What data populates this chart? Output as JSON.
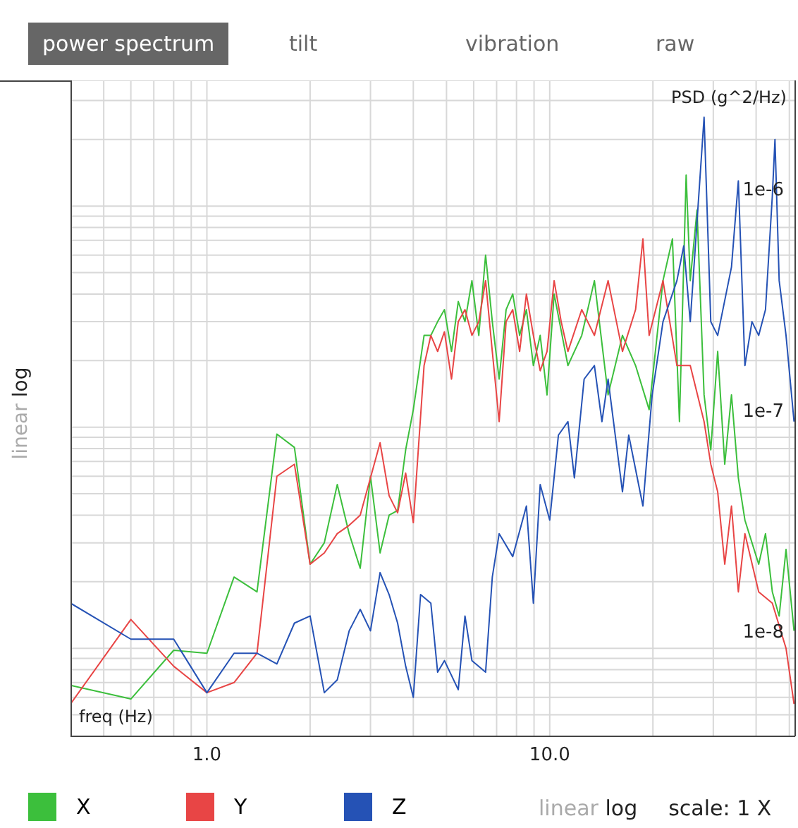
{
  "chart_data": {
    "type": "line",
    "xlabel": "freq (Hz)",
    "ylabel": "PSD (g^2/Hz)",
    "annotations": [
      "power spectrum",
      "tilt",
      "vibration",
      "raw",
      "linear",
      "log",
      "linear",
      "log",
      "scale: 1 X"
    ],
    "log": "xy",
    "grid": true,
    "legend": "bottom",
    "marker": "none",
    "line_style": "solid",
    "xlim": [
      0.4,
      52
    ],
    "ylim": [
      4e-09,
      3.7e-06
    ],
    "xticks": [
      {
        "value": 0.4,
        "label": null
      },
      {
        "value": 0.5,
        "label": null
      },
      {
        "value": 0.6,
        "label": null
      },
      {
        "value": 0.7,
        "label": null
      },
      {
        "value": 0.8,
        "label": null
      },
      {
        "value": 0.9,
        "label": null
      },
      {
        "value": 1,
        "label": "1.0"
      },
      {
        "value": 2,
        "label": null
      },
      {
        "value": 3,
        "label": null
      },
      {
        "value": 4,
        "label": null
      },
      {
        "value": 5,
        "label": null
      },
      {
        "value": 6,
        "label": null
      },
      {
        "value": 7,
        "label": null
      },
      {
        "value": 8,
        "label": null
      },
      {
        "value": 9,
        "label": null
      },
      {
        "value": 10,
        "label": "10.0"
      },
      {
        "value": 20,
        "label": null
      },
      {
        "value": 30,
        "label": null
      },
      {
        "value": 40,
        "label": null
      },
      {
        "value": 50,
        "label": null
      }
    ],
    "yticks": [
      {
        "value": 5e-09,
        "label": null
      },
      {
        "value": 6e-09,
        "label": null
      },
      {
        "value": 7e-09,
        "label": null
      },
      {
        "value": 8e-09,
        "label": null
      },
      {
        "value": 9e-09,
        "label": null
      },
      {
        "value": 1e-08,
        "label": "1e-8"
      },
      {
        "value": 2e-08,
        "label": null
      },
      {
        "value": 3e-08,
        "label": null
      },
      {
        "value": 4e-08,
        "label": null
      },
      {
        "value": 5e-08,
        "label": null
      },
      {
        "value": 6e-08,
        "label": null
      },
      {
        "value": 7e-08,
        "label": null
      },
      {
        "value": 8e-08,
        "label": null
      },
      {
        "value": 9e-08,
        "label": null
      },
      {
        "value": 1e-07,
        "label": "1e-7"
      },
      {
        "value": 2e-07,
        "label": null
      },
      {
        "value": 3e-07,
        "label": null
      },
      {
        "value": 4e-07,
        "label": null
      },
      {
        "value": 5e-07,
        "label": null
      },
      {
        "value": 6e-07,
        "label": null
      },
      {
        "value": 7e-07,
        "label": null
      },
      {
        "value": 8e-07,
        "label": null
      },
      {
        "value": 9e-07,
        "label": null
      },
      {
        "value": 1e-06,
        "label": "1e-6"
      },
      {
        "value": 2e-06,
        "label": null
      },
      {
        "value": 3e-06,
        "label": null
      }
    ],
    "series": [
      {
        "name": "X",
        "color": "#3cbf3c",
        "x": [
          0.4,
          0.6,
          0.8,
          1.0,
          1.2,
          1.4,
          1.6,
          1.8,
          2.0,
          2.2,
          2.4,
          2.6,
          2.8,
          3.0,
          3.2,
          3.4,
          3.6,
          3.8,
          4.0,
          4.3,
          4.5,
          4.71,
          4.93,
          5.17,
          5.41,
          5.66,
          5.93,
          6.21,
          6.5,
          6.8,
          7.12,
          7.46,
          7.8,
          8.17,
          8.55,
          8.96,
          9.38,
          9.82,
          10.3,
          11.3,
          12.4,
          13.5,
          14.8,
          16.3,
          17.8,
          19.5,
          21.4,
          22.8,
          23.9,
          25.0,
          25.7,
          26.9,
          28.2,
          29.5,
          30.9,
          32.4,
          33.9,
          35.5,
          37.1,
          40.7,
          42.6,
          44.6,
          46.7,
          48.9,
          51.6
        ],
        "values": [
          6.8e-09,
          5.9e-09,
          9.8e-09,
          9.5e-09,
          2.1e-08,
          1.8e-08,
          9.3e-08,
          8.1e-08,
          2.4e-08,
          3e-08,
          5.5e-08,
          3.3e-08,
          2.3e-08,
          6e-08,
          2.7e-08,
          4e-08,
          4.2e-08,
          7.9e-08,
          1.2e-07,
          2.6e-07,
          2.6e-07,
          3e-07,
          3.4e-07,
          2.2e-07,
          3.7e-07,
          3e-07,
          4.6e-07,
          2.6e-07,
          6e-07,
          3e-07,
          1.65e-07,
          3.4e-07,
          4e-07,
          2.6e-07,
          3.4e-07,
          1.9e-07,
          2.6e-07,
          1.4e-07,
          4e-07,
          1.9e-07,
          2.6e-07,
          4.6e-07,
          1.4e-07,
          2.6e-07,
          1.9e-07,
          1.2e-07,
          4.6e-07,
          7.1e-07,
          1.06e-07,
          1.38e-06,
          4.6e-07,
          9.6e-07,
          1.4e-07,
          7.9e-08,
          2.2e-07,
          6.8e-08,
          1.4e-07,
          5.9e-08,
          3.8e-08,
          2.4e-08,
          3.3e-08,
          1.8e-08,
          1.4e-08,
          2.8e-08,
          1.2e-08
        ]
      },
      {
        "name": "Y",
        "color": "#e84545",
        "x": [
          0.4,
          0.6,
          0.8,
          1.0,
          1.2,
          1.4,
          1.6,
          1.8,
          2.0,
          2.2,
          2.4,
          2.6,
          2.8,
          3.0,
          3.2,
          3.4,
          3.6,
          3.8,
          4.0,
          4.3,
          4.5,
          4.71,
          4.93,
          5.17,
          5.41,
          5.66,
          5.93,
          6.21,
          6.5,
          6.8,
          7.12,
          7.46,
          7.8,
          8.17,
          8.55,
          8.96,
          9.38,
          9.82,
          10.3,
          10.8,
          11.3,
          12.4,
          13.5,
          14.8,
          16.3,
          17.8,
          18.7,
          19.5,
          21.4,
          23.5,
          25.7,
          28.2,
          29.5,
          30.9,
          32.4,
          33.9,
          35.5,
          37.1,
          40.7,
          44.6,
          48.9,
          51.6
        ],
        "values": [
          5.6e-09,
          1.35e-08,
          8.3e-09,
          6.3e-09,
          7e-09,
          9.5e-09,
          6e-08,
          6.8e-08,
          2.4e-08,
          2.7e-08,
          3.3e-08,
          3.6e-08,
          4e-08,
          5.9e-08,
          8.5e-08,
          4.9e-08,
          4.1e-08,
          6.2e-08,
          3.7e-08,
          1.9e-07,
          2.6e-07,
          2.2e-07,
          2.7e-07,
          1.65e-07,
          3e-07,
          3.4e-07,
          2.6e-07,
          3e-07,
          4.6e-07,
          2.2e-07,
          1.06e-07,
          3e-07,
          3.4e-07,
          2.2e-07,
          4e-07,
          2.6e-07,
          1.8e-07,
          2.2e-07,
          4.6e-07,
          3e-07,
          2.2e-07,
          3.4e-07,
          2.6e-07,
          4.6e-07,
          2.2e-07,
          3.4e-07,
          7.1e-07,
          2.6e-07,
          4.6e-07,
          1.9e-07,
          1.9e-07,
          1.06e-07,
          6.8e-08,
          5.1e-08,
          2.4e-08,
          4.4e-08,
          1.8e-08,
          3.3e-08,
          1.8e-08,
          1.6e-08,
          1e-08,
          5.6e-09
        ]
      },
      {
        "name": "Z",
        "color": "#2552b5",
        "x": [
          0.4,
          0.6,
          0.8,
          1.0,
          1.2,
          1.4,
          1.6,
          1.8,
          2.0,
          2.2,
          2.4,
          2.6,
          2.8,
          3.0,
          3.2,
          3.4,
          3.6,
          3.8,
          4.0,
          4.2,
          4.5,
          4.71,
          4.93,
          5.41,
          5.66,
          5.93,
          6.5,
          6.8,
          7.12,
          7.8,
          8.55,
          8.96,
          9.38,
          10.0,
          10.6,
          11.3,
          11.8,
          12.6,
          13.5,
          14.2,
          14.8,
          16.3,
          17.0,
          18.7,
          19.9,
          21.4,
          23.5,
          24.6,
          25.7,
          28.2,
          29.5,
          30.9,
          33.9,
          35.5,
          37.1,
          38.9,
          40.7,
          42.6,
          44.6,
          45.4,
          46.7,
          48.9,
          51.6
        ],
        "values": [
          1.6e-08,
          1.1e-08,
          1.1e-08,
          6.3e-09,
          9.5e-09,
          9.5e-09,
          8.5e-09,
          1.3e-08,
          1.4e-08,
          6.3e-09,
          7.2e-09,
          1.2e-08,
          1.5e-08,
          1.2e-08,
          2.2e-08,
          1.75e-08,
          1.3e-08,
          8.3e-09,
          6e-09,
          1.75e-08,
          1.6e-08,
          7.8e-09,
          8.8e-09,
          6.5e-09,
          1.4e-08,
          8.8e-09,
          7.8e-09,
          2.1e-08,
          3.3e-08,
          2.6e-08,
          4.4e-08,
          1.6e-08,
          5.5e-08,
          3.8e-08,
          9.2e-08,
          1.06e-07,
          5.9e-08,
          1.65e-07,
          1.9e-07,
          1.06e-07,
          1.65e-07,
          5.1e-08,
          9.2e-08,
          4.4e-08,
          1.4e-07,
          3e-07,
          4.6e-07,
          6.6e-07,
          3e-07,
          2.52e-06,
          3e-07,
          2.6e-07,
          5.3e-07,
          1.3e-06,
          1.9e-07,
          3e-07,
          2.6e-07,
          3.4e-07,
          1.11e-06,
          2e-06,
          4.6e-07,
          2.6e-07,
          1.06e-07
        ]
      }
    ]
  }
}
